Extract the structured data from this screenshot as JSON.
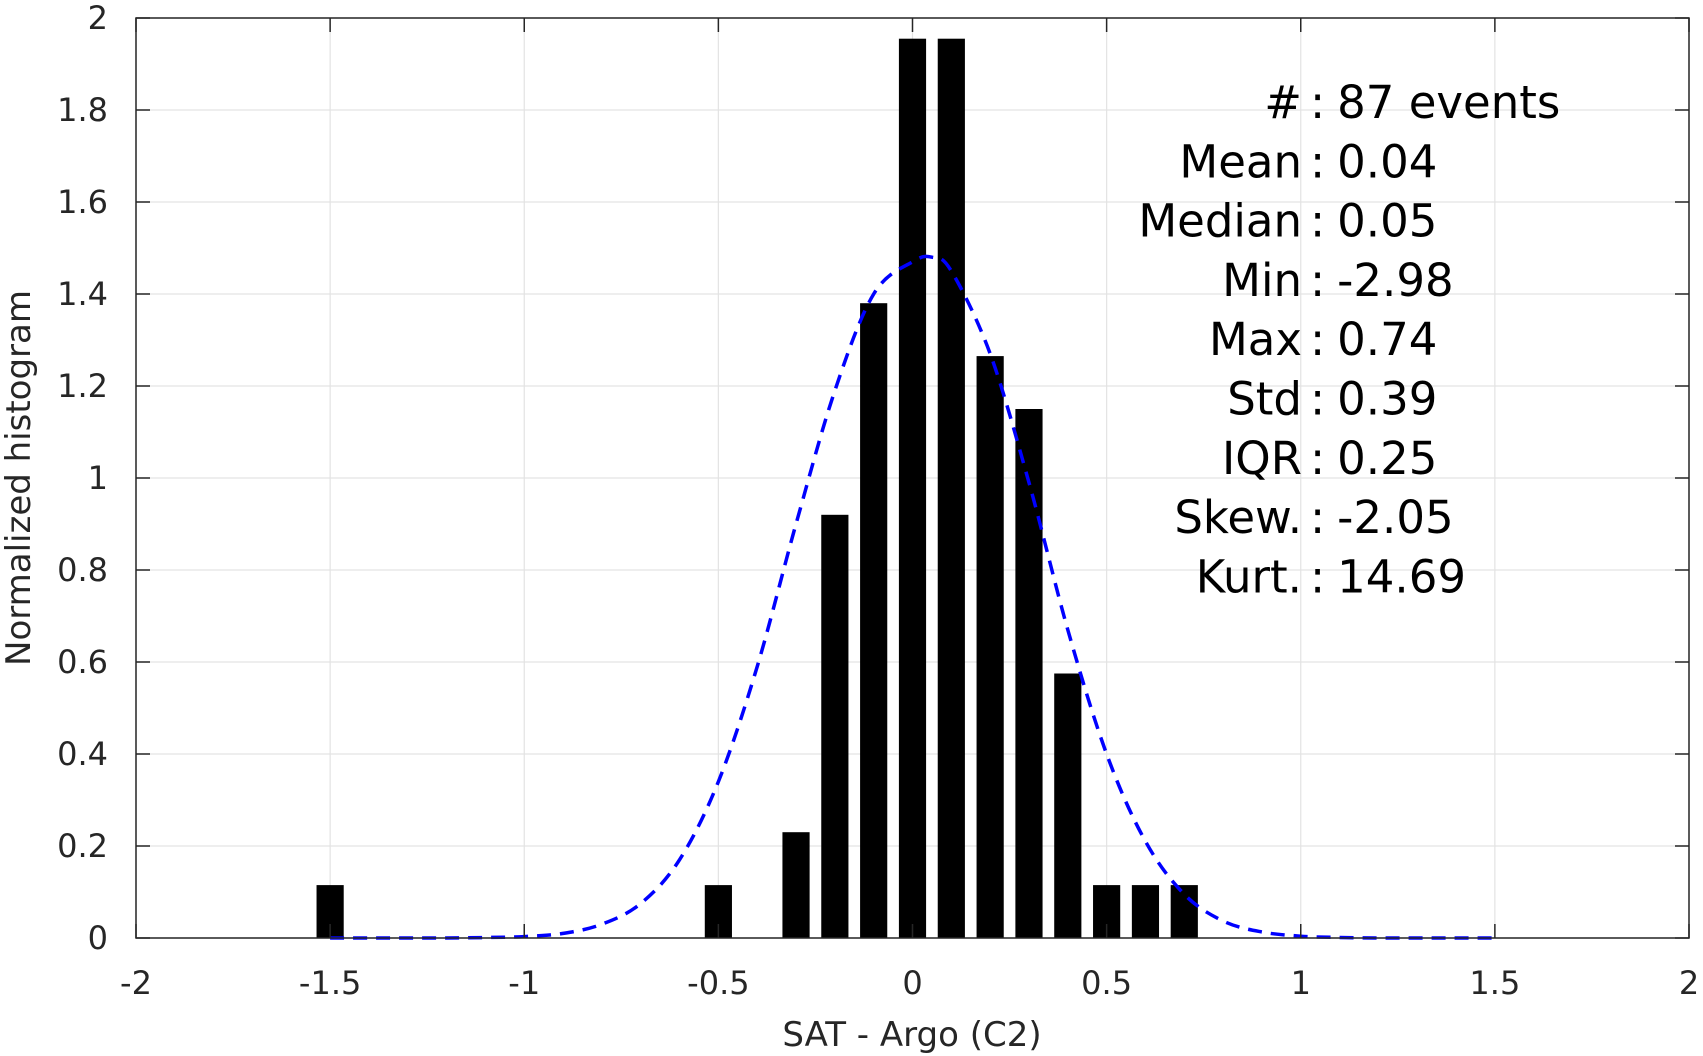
{
  "chart_data": {
    "type": "bar",
    "xlabel": "SAT - Argo (C2)",
    "ylabel": "Normalized histogram",
    "xlim": [
      -2,
      2
    ],
    "ylim": [
      0,
      2
    ],
    "xticks": [
      "-2",
      "-1.5",
      "-1",
      "-0.5",
      "0",
      "0.5",
      "1",
      "1.5",
      "2"
    ],
    "yticks": [
      "0",
      "0.2",
      "0.4",
      "0.6",
      "0.8",
      "1",
      "1.2",
      "1.4",
      "1.6",
      "1.8",
      "2"
    ],
    "grid": true,
    "bar_color": "#000000",
    "fit_color": "#0000ff",
    "bars": [
      {
        "x": -1.5,
        "value": 0.115
      },
      {
        "x": -0.5,
        "value": 0.115
      },
      {
        "x": -0.3,
        "value": 0.23
      },
      {
        "x": -0.2,
        "value": 0.92
      },
      {
        "x": -0.1,
        "value": 1.38
      },
      {
        "x": 0.0,
        "value": 1.955
      },
      {
        "x": 0.1,
        "value": 1.955
      },
      {
        "x": 0.2,
        "value": 1.265
      },
      {
        "x": 0.3,
        "value": 1.15
      },
      {
        "x": 0.4,
        "value": 0.575
      },
      {
        "x": 0.5,
        "value": 0.115
      },
      {
        "x": 0.6,
        "value": 0.115
      },
      {
        "x": 0.7,
        "value": 0.115
      }
    ],
    "fit_curve": {
      "style": "dashed",
      "x": [
        -1.5,
        -1.4,
        -1.3,
        -1.2,
        -1.1,
        -1.0,
        -0.9,
        -0.8,
        -0.7,
        -0.6,
        -0.5,
        -0.4,
        -0.3,
        -0.2,
        -0.1,
        0.0,
        0.05,
        0.1,
        0.2,
        0.3,
        0.4,
        0.5,
        0.6,
        0.7,
        0.8,
        0.9,
        1.0,
        1.1,
        1.2,
        1.3,
        1.4,
        1.5
      ],
      "y": [
        0.0,
        0.0,
        0.0,
        0.0,
        0.001,
        0.003,
        0.01,
        0.03,
        0.075,
        0.17,
        0.34,
        0.59,
        0.9,
        1.19,
        1.4,
        1.47,
        1.48,
        1.45,
        1.27,
        0.99,
        0.67,
        0.4,
        0.21,
        0.095,
        0.037,
        0.013,
        0.004,
        0.001,
        0.0,
        0.0,
        0.0,
        0.0
      ]
    },
    "annotations": [
      {
        "label": "#",
        "sep": " :",
        "value": "87 events"
      },
      {
        "label": "Mean",
        "sep": " :",
        "value": "0.04"
      },
      {
        "label": "Median",
        "sep": " :",
        "value": "0.05"
      },
      {
        "label": "Min",
        "sep": " :",
        "value": "-2.98"
      },
      {
        "label": "Max",
        "sep": " :",
        "value": "0.74"
      },
      {
        "label": "Std",
        "sep": " :",
        "value": "0.39"
      },
      {
        "label": "IQR",
        "sep": " :",
        "value": "0.25"
      },
      {
        "label": "Skew.",
        "sep": " :",
        "value": "-2.05"
      },
      {
        "label": "Kurt.",
        "sep": " :",
        "value": "14.69"
      }
    ]
  }
}
